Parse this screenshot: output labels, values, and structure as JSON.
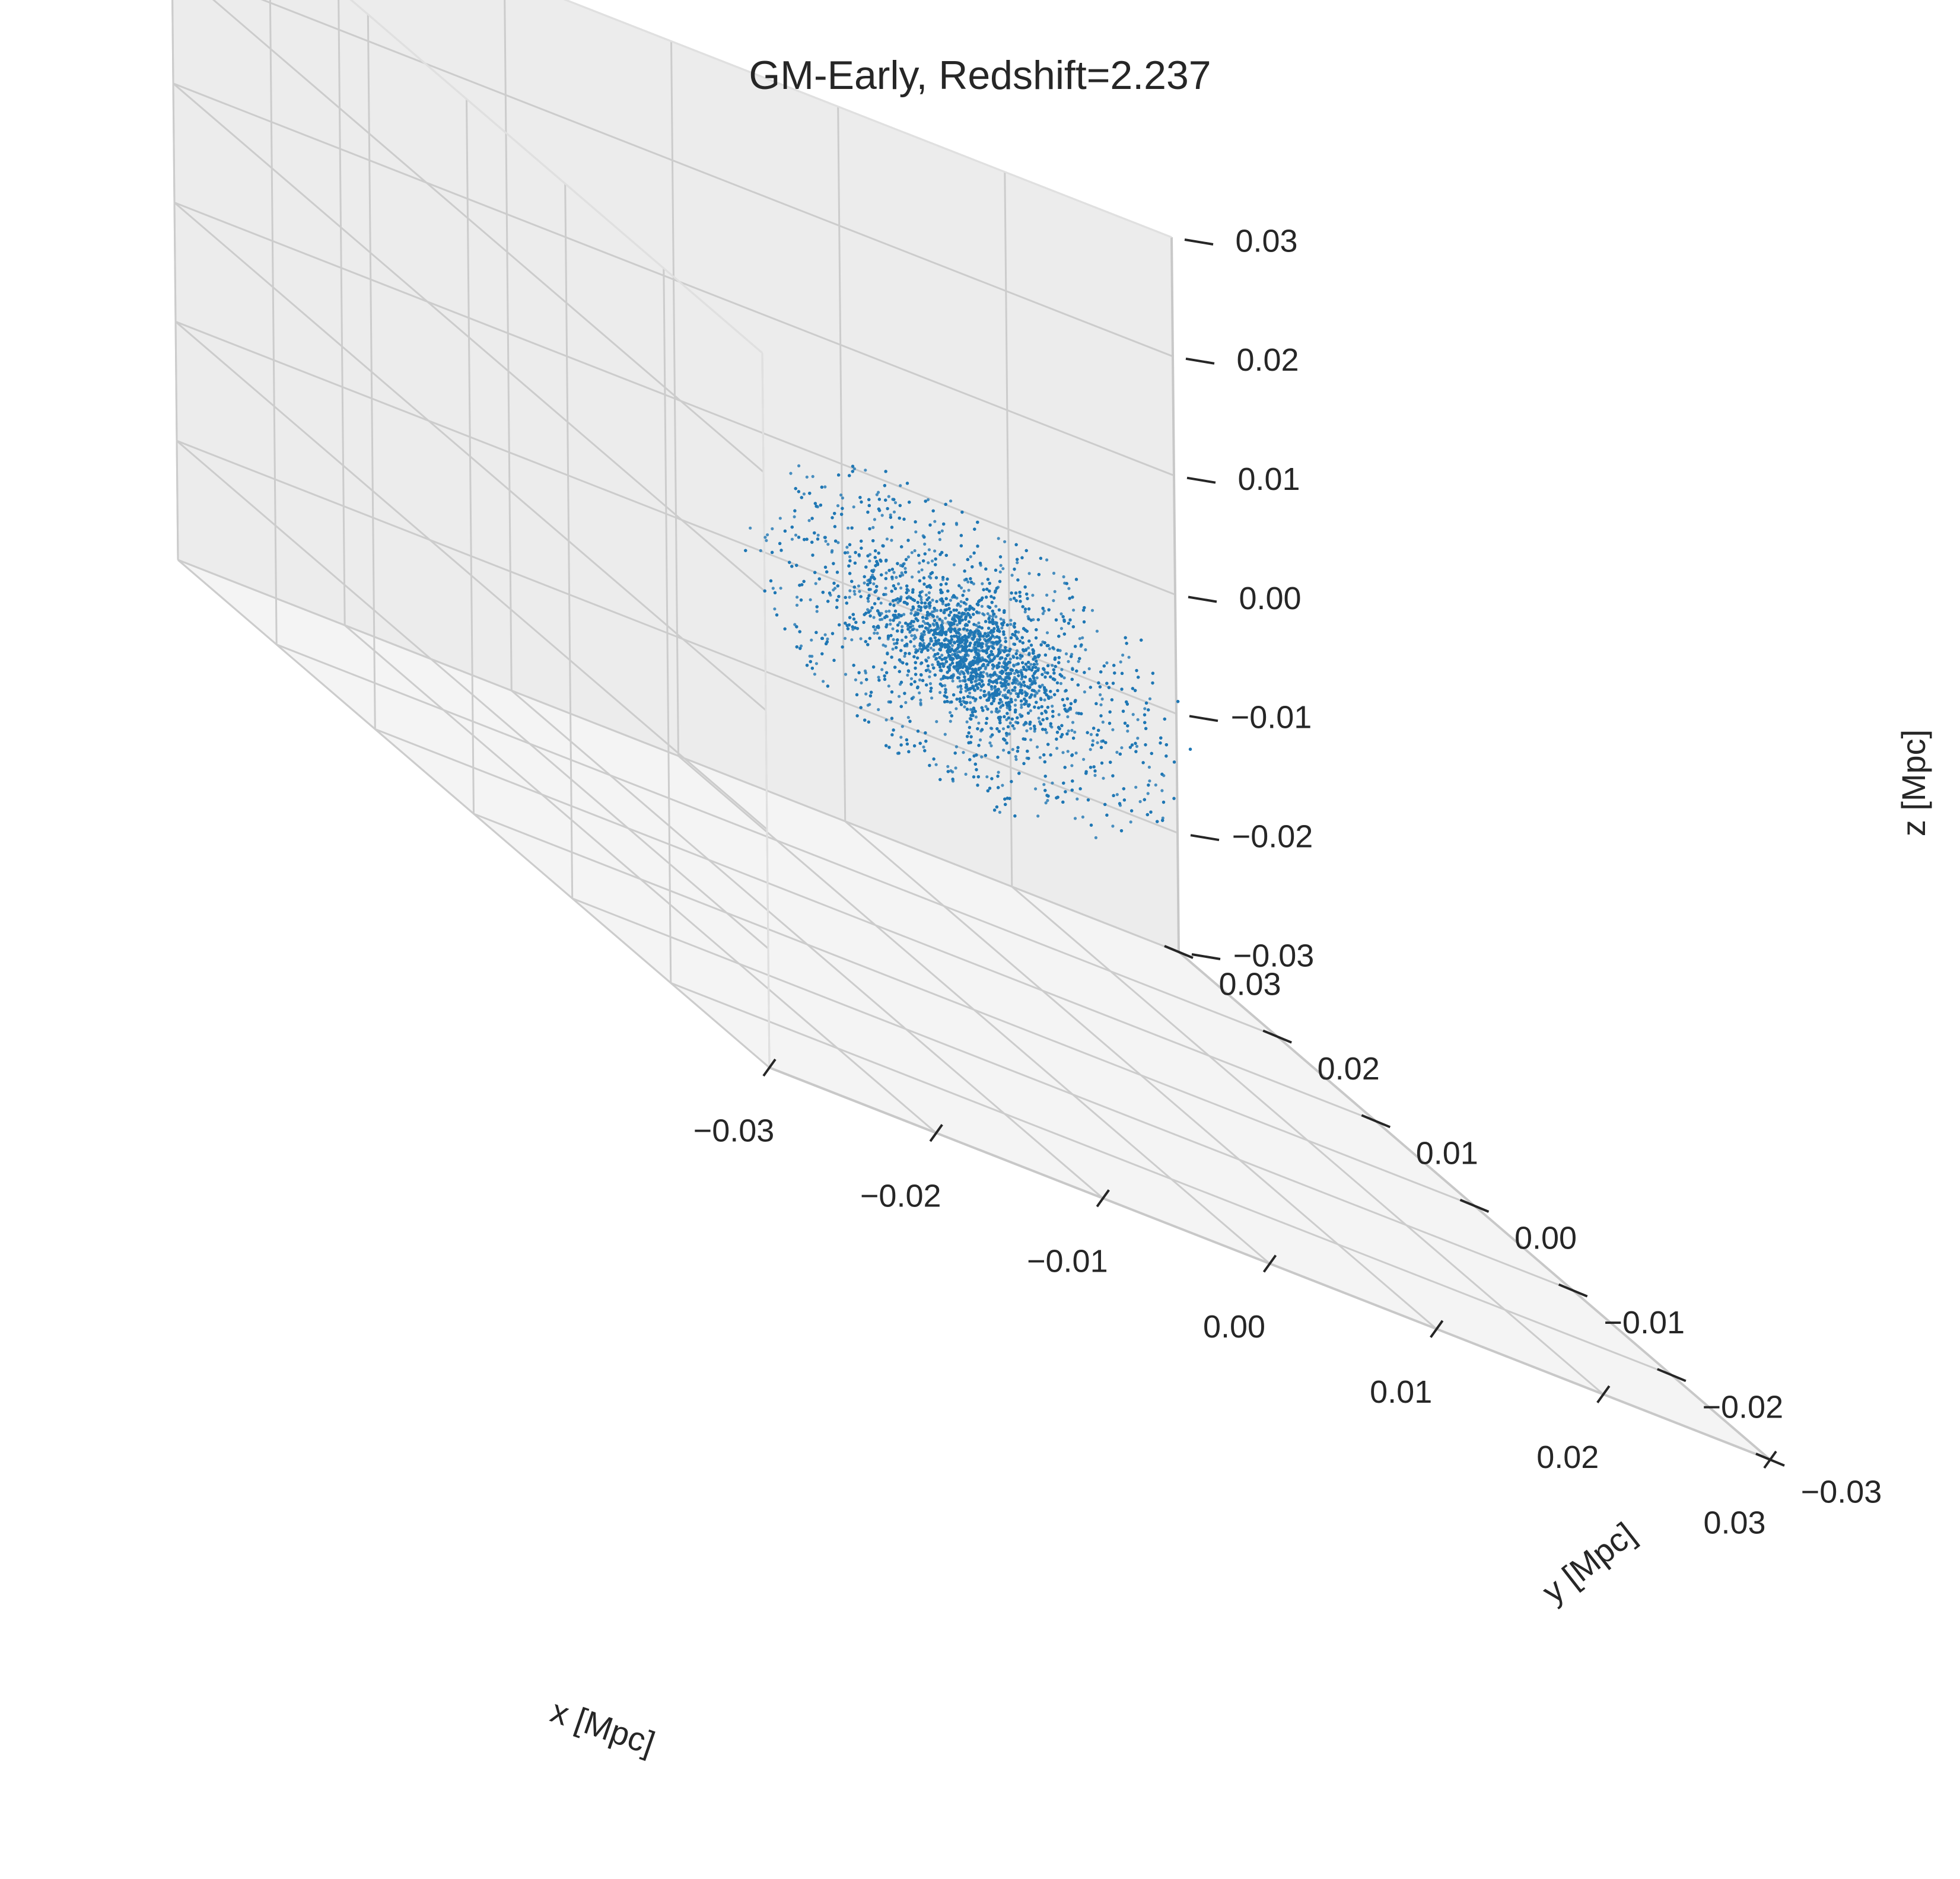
{
  "chart_data": {
    "type": "scatter",
    "projection": "3d",
    "title": "GM-Early, Redshift=2.237",
    "xlabel": "x [Mpc]",
    "ylabel": "y [Mpc]",
    "zlabel": "z [Mpc]",
    "xlim": [
      -0.03,
      0.03
    ],
    "ylim": [
      -0.03,
      0.03
    ],
    "zlim": [
      -0.03,
      0.03
    ],
    "xticks": [
      -0.03,
      -0.02,
      -0.01,
      0.0,
      0.01,
      0.02,
      0.03
    ],
    "yticks": [
      -0.03,
      -0.02,
      -0.01,
      0.0,
      0.01,
      0.02,
      0.03
    ],
    "zticks": [
      -0.03,
      -0.02,
      -0.01,
      0.0,
      0.01,
      0.02,
      0.03
    ],
    "xtick_labels": [
      "−0.03",
      "−0.02",
      "−0.01",
      "0.00",
      "0.01",
      "0.02",
      "0.03"
    ],
    "ytick_labels": [
      "−0.03",
      "−0.02",
      "−0.01",
      "0.00",
      "0.01",
      "0.02",
      "0.03"
    ],
    "ztick_labels": [
      "−0.03",
      "−0.02",
      "−0.01",
      "0.00",
      "0.01",
      "0.02",
      "0.03"
    ],
    "grid": true,
    "marker_color": "#1f77b4",
    "pane_colors": {
      "left": "#f2f2f2",
      "back": "#ececec",
      "floor": "#f4f4f4"
    },
    "grid_color": "#cccccc",
    "series": [
      {
        "distribution": "roughly spherical particle cloud, dense core",
        "center": [
          0.0,
          0.0,
          0.0
        ],
        "core_radius": 0.004,
        "outer_radius": 0.012,
        "n_points": 9000
      }
    ]
  }
}
